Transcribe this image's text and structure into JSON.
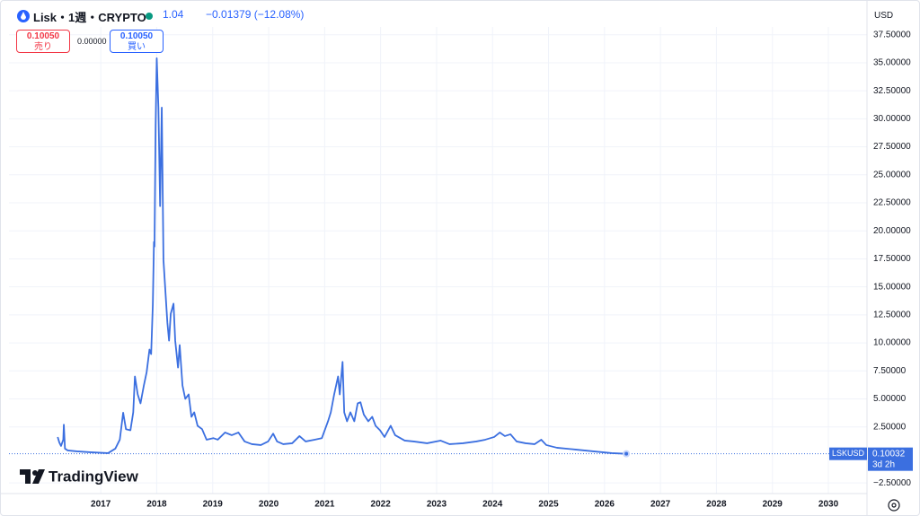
{
  "header": {
    "change": "−0.01379 (−12.08%)"
  },
  "trade": {
    "sell_price": "0.10050",
    "sell_label": "売り",
    "spread": "0.00000",
    "buy_price": "0.10050",
    "buy_label": "買い"
  },
  "currency": "USD",
  "logo": "TradingView",
  "price_tag": {
    "countdown": "3d 2h"
  },
  "chart_data": {
    "type": "line",
    "title": "Lisk・1週・CRYPTO",
    "x": [
      2016.23,
      2016.26,
      2016.29,
      2016.33,
      2016.34,
      2016.36,
      2016.41,
      2016.57,
      2016.81,
      2017.13,
      2017.26,
      2017.34,
      2017.4,
      2017.45,
      2017.53,
      2017.58,
      2017.61,
      2017.66,
      2017.71,
      2017.77,
      2017.82,
      2017.87,
      2017.9,
      2017.93,
      2017.95,
      2017.96,
      2017.98,
      2018.0,
      2018.03,
      2018.06,
      2018.09,
      2018.12,
      2018.16,
      2018.19,
      2018.22,
      2018.25,
      2018.3,
      2018.33,
      2018.38,
      2018.41,
      2018.46,
      2018.51,
      2018.57,
      2018.62,
      2018.67,
      2018.73,
      2018.81,
      2018.89,
      2019.01,
      2019.09,
      2019.22,
      2019.34,
      2019.46,
      2019.57,
      2019.7,
      2019.86,
      2019.99,
      2020.08,
      2020.15,
      2020.26,
      2020.42,
      2020.55,
      2020.66,
      2020.82,
      2020.95,
      2021.06,
      2021.11,
      2021.17,
      2021.24,
      2021.27,
      2021.32,
      2021.35,
      2021.4,
      2021.46,
      2021.53,
      2021.59,
      2021.64,
      2021.7,
      2021.78,
      2021.85,
      2021.91,
      2021.99,
      2022.07,
      2022.18,
      2022.26,
      2022.43,
      2022.59,
      2022.83,
      2023.07,
      2023.23,
      2023.47,
      2023.71,
      2023.87,
      2024.03,
      2024.13,
      2024.22,
      2024.32,
      2024.43,
      2024.59,
      2024.75,
      2024.87,
      2024.96,
      2025.15,
      2025.48,
      2025.8,
      2026.13,
      2026.39
    ],
    "series": [
      {
        "name": "LSKUSD",
        "color": "#3b6fe0",
        "values": [
          1.6,
          1.1,
          0.8,
          1.36,
          2.7,
          0.56,
          0.4,
          0.32,
          0.24,
          0.16,
          0.56,
          1.36,
          3.77,
          2.3,
          2.2,
          3.8,
          7.0,
          5.4,
          4.6,
          6.2,
          7.4,
          9.4,
          9.0,
          13.4,
          19.0,
          18.6,
          29.4,
          35.4,
          31.0,
          22.2,
          31.0,
          17.4,
          14.2,
          11.8,
          10.2,
          12.6,
          13.5,
          10.2,
          7.8,
          9.8,
          6.2,
          5.0,
          5.4,
          3.4,
          3.8,
          2.6,
          2.3,
          1.36,
          1.5,
          1.36,
          2.0,
          1.76,
          2.0,
          1.2,
          0.96,
          0.88,
          1.2,
          1.9,
          1.2,
          0.96,
          1.04,
          1.68,
          1.2,
          1.36,
          1.5,
          3.0,
          3.8,
          5.4,
          7.0,
          5.4,
          8.3,
          3.8,
          3.0,
          3.8,
          3.0,
          4.6,
          4.7,
          3.6,
          3.0,
          3.4,
          2.6,
          2.2,
          1.6,
          2.6,
          1.76,
          1.28,
          1.2,
          1.04,
          1.28,
          0.96,
          1.04,
          1.2,
          1.36,
          1.6,
          2.0,
          1.68,
          1.84,
          1.2,
          1.04,
          0.96,
          1.36,
          0.88,
          0.64,
          0.48,
          0.32,
          0.16,
          0.10032
        ]
      }
    ],
    "xlim": [
      2015.36,
      2030.69
    ],
    "xticks": [
      2017,
      2018,
      2019,
      2020,
      2021,
      2022,
      2023,
      2024,
      2025,
      2026,
      2027,
      2028,
      2029,
      2030
    ],
    "ylim": [
      -3.45,
      38.2
    ],
    "yticks": [
      {
        "value": -2.5,
        "label": "−2.50000"
      },
      {
        "value": 2.5,
        "label": "2.50000"
      },
      {
        "value": 5,
        "label": "5.00000"
      },
      {
        "value": 7.5,
        "label": "7.50000"
      },
      {
        "value": 10,
        "label": "10.00000"
      },
      {
        "value": 12.5,
        "label": "12.50000"
      },
      {
        "value": 15,
        "label": "15.00000"
      },
      {
        "value": 17.5,
        "label": "17.50000"
      },
      {
        "value": 20,
        "label": "20.00000"
      },
      {
        "value": 22.5,
        "label": "22.50000"
      },
      {
        "value": 25,
        "label": "25.00000"
      },
      {
        "value": 27.5,
        "label": "27.50000"
      },
      {
        "value": 30,
        "label": "30.00000"
      },
      {
        "value": 32.5,
        "label": "32.50000"
      },
      {
        "value": 35,
        "label": "35.00000"
      },
      {
        "value": 37.5,
        "label": "37.50000"
      }
    ],
    "grid": true
  }
}
